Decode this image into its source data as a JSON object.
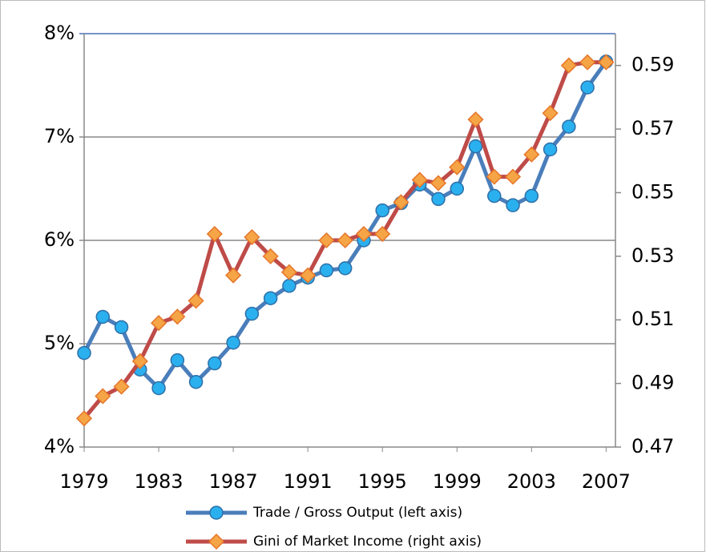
{
  "chart_data": {
    "type": "line",
    "x": [
      1979,
      1980,
      1981,
      1982,
      1983,
      1984,
      1985,
      1986,
      1987,
      1988,
      1989,
      1990,
      1991,
      1992,
      1993,
      1994,
      1995,
      1996,
      1997,
      1998,
      1999,
      2000,
      2001,
      2002,
      2003,
      2004,
      2005,
      2006,
      2007
    ],
    "xlim": [
      1979,
      2007.5
    ],
    "xticks": [
      1979,
      1983,
      1987,
      1991,
      1995,
      1999,
      2003,
      2007
    ],
    "ylim": [
      4,
      8
    ],
    "yticks": [
      {
        "value": 4,
        "label": "4%"
      },
      {
        "value": 5,
        "label": "5%"
      },
      {
        "value": 6,
        "label": "6%"
      },
      {
        "value": 7,
        "label": "7%"
      },
      {
        "value": 8,
        "label": "8%"
      }
    ],
    "y2lim": [
      0.47,
      0.6
    ],
    "y2ticks": [
      0.47,
      0.49,
      0.51,
      0.53,
      0.55,
      0.57,
      0.59
    ],
    "grid": true,
    "legend": "bottom",
    "series": [
      {
        "name": "Trade / Gross Output (left axis)",
        "color": "#4a7ebb",
        "marker": "circle",
        "values": [
          4.91,
          5.26,
          5.16,
          4.75,
          4.57,
          4.84,
          4.63,
          4.81,
          5.01,
          5.29,
          5.44,
          5.56,
          5.64,
          5.71,
          5.73,
          6.0,
          6.29,
          6.36,
          6.54,
          6.4,
          6.5,
          6.91,
          6.43,
          6.34,
          6.43,
          6.88,
          7.1,
          7.48,
          7.73
        ]
      },
      {
        "name": "Gini of Market Income (right axis)",
        "color": "#be4b48",
        "marker": "diamond",
        "axis": "y2",
        "values": [
          0.479,
          0.486,
          0.489,
          0.497,
          0.509,
          0.511,
          0.516,
          0.537,
          0.524,
          0.536,
          0.53,
          0.525,
          0.524,
          0.535,
          0.535,
          0.537,
          0.537,
          0.547,
          0.554,
          0.553,
          0.558,
          0.573,
          0.555,
          0.555,
          0.562,
          0.575,
          0.59,
          0.591,
          0.591
        ]
      }
    ]
  }
}
